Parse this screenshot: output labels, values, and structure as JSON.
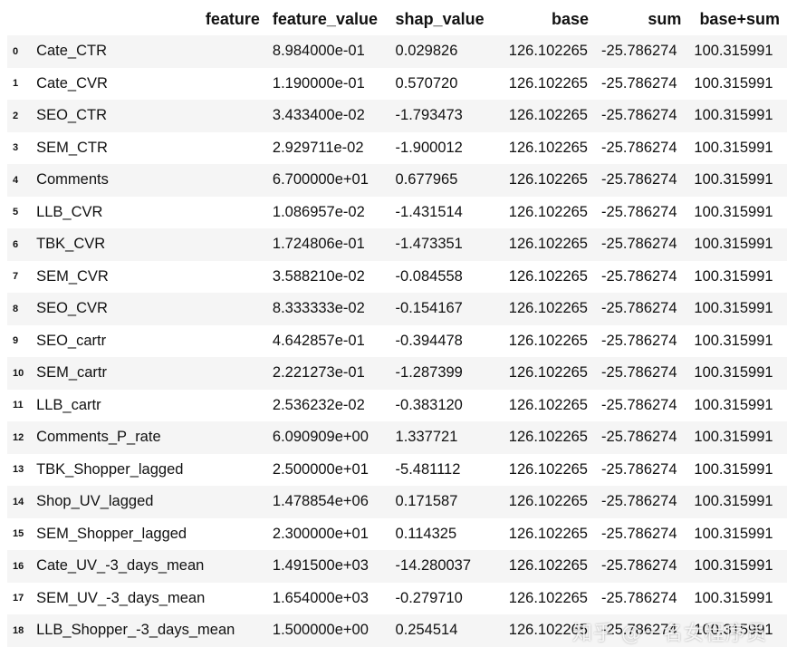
{
  "table": {
    "headers": {
      "index": "",
      "feature": "feature",
      "feature_value": "feature_value",
      "shap_value": "shap_value",
      "base": "base",
      "sum": "sum",
      "base_sum": "base+sum"
    },
    "rows": [
      {
        "idx": "0",
        "feature": "Cate_CTR",
        "feature_value": "8.984000e-01",
        "shap_value": "0.029826",
        "base": "126.102265",
        "sum": "-25.786274",
        "base_sum": "100.315991"
      },
      {
        "idx": "1",
        "feature": "Cate_CVR",
        "feature_value": "1.190000e-01",
        "shap_value": "0.570720",
        "base": "126.102265",
        "sum": "-25.786274",
        "base_sum": "100.315991"
      },
      {
        "idx": "2",
        "feature": "SEO_CTR",
        "feature_value": "3.433400e-02",
        "shap_value": "-1.793473",
        "base": "126.102265",
        "sum": "-25.786274",
        "base_sum": "100.315991"
      },
      {
        "idx": "3",
        "feature": "SEM_CTR",
        "feature_value": "2.929711e-02",
        "shap_value": "-1.900012",
        "base": "126.102265",
        "sum": "-25.786274",
        "base_sum": "100.315991"
      },
      {
        "idx": "4",
        "feature": "Comments",
        "feature_value": "6.700000e+01",
        "shap_value": "0.677965",
        "base": "126.102265",
        "sum": "-25.786274",
        "base_sum": "100.315991"
      },
      {
        "idx": "5",
        "feature": "LLB_CVR",
        "feature_value": "1.086957e-02",
        "shap_value": "-1.431514",
        "base": "126.102265",
        "sum": "-25.786274",
        "base_sum": "100.315991"
      },
      {
        "idx": "6",
        "feature": "TBK_CVR",
        "feature_value": "1.724806e-01",
        "shap_value": "-1.473351",
        "base": "126.102265",
        "sum": "-25.786274",
        "base_sum": "100.315991"
      },
      {
        "idx": "7",
        "feature": "SEM_CVR",
        "feature_value": "3.588210e-02",
        "shap_value": "-0.084558",
        "base": "126.102265",
        "sum": "-25.786274",
        "base_sum": "100.315991"
      },
      {
        "idx": "8",
        "feature": "SEO_CVR",
        "feature_value": "8.333333e-02",
        "shap_value": "-0.154167",
        "base": "126.102265",
        "sum": "-25.786274",
        "base_sum": "100.315991"
      },
      {
        "idx": "9",
        "feature": "SEO_cartr",
        "feature_value": "4.642857e-01",
        "shap_value": "-0.394478",
        "base": "126.102265",
        "sum": "-25.786274",
        "base_sum": "100.315991"
      },
      {
        "idx": "10",
        "feature": "SEM_cartr",
        "feature_value": "2.221273e-01",
        "shap_value": "-1.287399",
        "base": "126.102265",
        "sum": "-25.786274",
        "base_sum": "100.315991"
      },
      {
        "idx": "11",
        "feature": "LLB_cartr",
        "feature_value": "2.536232e-02",
        "shap_value": "-0.383120",
        "base": "126.102265",
        "sum": "-25.786274",
        "base_sum": "100.315991"
      },
      {
        "idx": "12",
        "feature": "Comments_P_rate",
        "feature_value": "6.090909e+00",
        "shap_value": "1.337721",
        "base": "126.102265",
        "sum": "-25.786274",
        "base_sum": "100.315991"
      },
      {
        "idx": "13",
        "feature": "TBK_Shopper_lagged",
        "feature_value": "2.500000e+01",
        "shap_value": "-5.481112",
        "base": "126.102265",
        "sum": "-25.786274",
        "base_sum": "100.315991"
      },
      {
        "idx": "14",
        "feature": "Shop_UV_lagged",
        "feature_value": "1.478854e+06",
        "shap_value": "0.171587",
        "base": "126.102265",
        "sum": "-25.786274",
        "base_sum": "100.315991"
      },
      {
        "idx": "15",
        "feature": "SEM_Shopper_lagged",
        "feature_value": "2.300000e+01",
        "shap_value": "0.114325",
        "base": "126.102265",
        "sum": "-25.786274",
        "base_sum": "100.315991"
      },
      {
        "idx": "16",
        "feature": "Cate_UV_-3_days_mean",
        "feature_value": "1.491500e+03",
        "shap_value": "-14.280037",
        "base": "126.102265",
        "sum": "-25.786274",
        "base_sum": "100.315991"
      },
      {
        "idx": "17",
        "feature": "SEM_UV_-3_days_mean",
        "feature_value": "1.654000e+03",
        "shap_value": "-0.279710",
        "base": "126.102265",
        "sum": "-25.786274",
        "base_sum": "100.315991"
      },
      {
        "idx": "18",
        "feature": "LLB_Shopper_-3_days_mean",
        "feature_value": "1.500000e+00",
        "shap_value": "0.254514",
        "base": "126.102265",
        "sum": "-25.786274",
        "base_sum": "100.315991"
      }
    ]
  },
  "watermark": "知乎 @一名女程序员"
}
